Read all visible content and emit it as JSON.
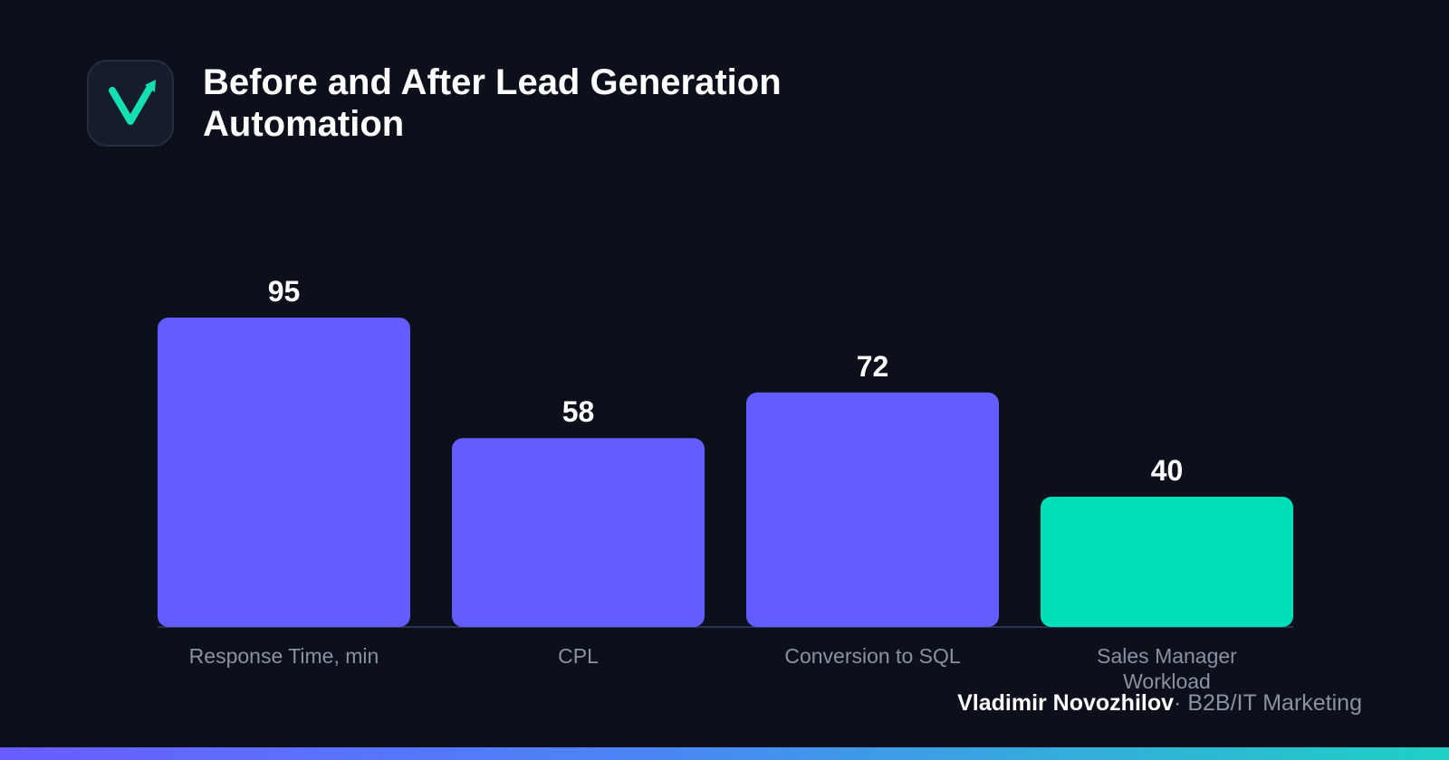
{
  "header": {
    "title": "Before and After Lead Generation Automation",
    "logo_icon": "checkmark-arrow-logo-icon"
  },
  "footer": {
    "author": "Vladimir Novozhilov",
    "separator": "·",
    "role": "B2B/IT Marketing"
  },
  "colors": {
    "background": "#0b101b",
    "bar_primary": "#635cff",
    "bar_highlight": "#00e0b8",
    "axis_line": "#2a3350",
    "category_label": "#8a91a0",
    "value_label": "#ffffff",
    "logo_accent": "#14e0b4"
  },
  "chart_data": {
    "type": "bar",
    "title": "Before and After Lead Generation Automation",
    "categories": [
      "Response Time, min",
      "CPL",
      "Conversion to SQL",
      "Sales Manager Workload"
    ],
    "values": [
      95,
      58,
      72,
      40
    ],
    "data_labels": [
      "95",
      "58",
      "72",
      "40"
    ],
    "highlight_index": 3,
    "xlabel": "",
    "ylabel": "",
    "ylim": [
      0,
      100
    ],
    "grid": false,
    "legend": "none"
  }
}
